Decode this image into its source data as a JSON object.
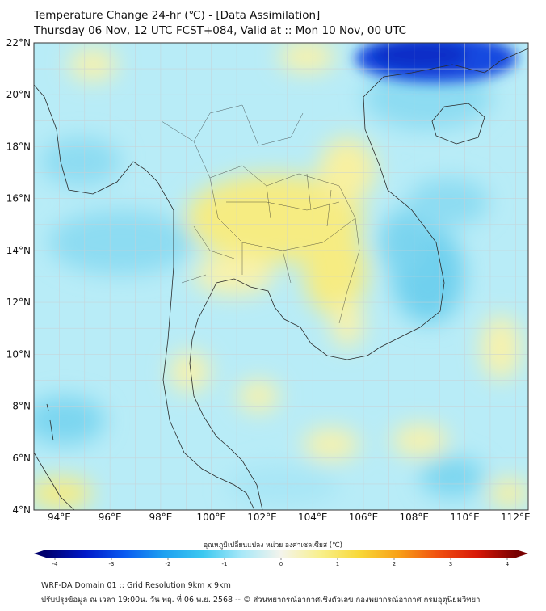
{
  "header": {
    "title": "Temperature Change 24-hr (℃) - [Data Assimilation]",
    "subtitle": "Thursday 06 Nov, 12 UTC FCST+084, Valid at :: Mon 10 Nov, 00 UTC"
  },
  "map": {
    "lat_labels": [
      "22°N",
      "20°N",
      "18°N",
      "16°N",
      "14°N",
      "12°N",
      "10°N",
      "8°N",
      "6°N",
      "4°N"
    ],
    "lon_labels": [
      "94°E",
      "96°E",
      "98°E",
      "100°E",
      "102°E",
      "104°E",
      "106°E",
      "108°E",
      "110°E",
      "112°E"
    ],
    "lat_range": [
      4,
      22
    ],
    "lon_range": [
      93,
      112.5
    ],
    "field_colors": {
      "ocean_base": "#b8ecf7",
      "warm": "#f6ec82",
      "cool": "#6fd0ee",
      "strong_cool": "#0a2fc8"
    }
  },
  "colorbar": {
    "title": "อุณหภูมิเปลี่ยนแปลง หน่วย องศาเซลเซียส (℃)",
    "ticks": [
      "-4",
      "-3",
      "-2",
      "-1",
      "0",
      "1",
      "2",
      "3",
      "4"
    ],
    "range": [
      -4,
      4
    ],
    "stops": [
      "#00006e",
      "#0018c8",
      "#0a5af0",
      "#1ea0f0",
      "#3cc8f0",
      "#a8e8f8",
      "#f4f4ec",
      "#f8f08c",
      "#f8d838",
      "#f8a018",
      "#f05010",
      "#d81808",
      "#780000"
    ]
  },
  "footer": {
    "line1": "WRF-DA Domain 01 :: Grid Resolution 9km x 9km",
    "line2": "ปรับปรุงข้อมูล ณ เวลา 19:00น. วัน พฤ. ที่ 06 พ.ย. 2568 -- © ส่วนพยากรณ์อากาศเชิงตัวเลข กองพยากรณ์อากาศ กรมอุตุนิยมวิทยา"
  }
}
